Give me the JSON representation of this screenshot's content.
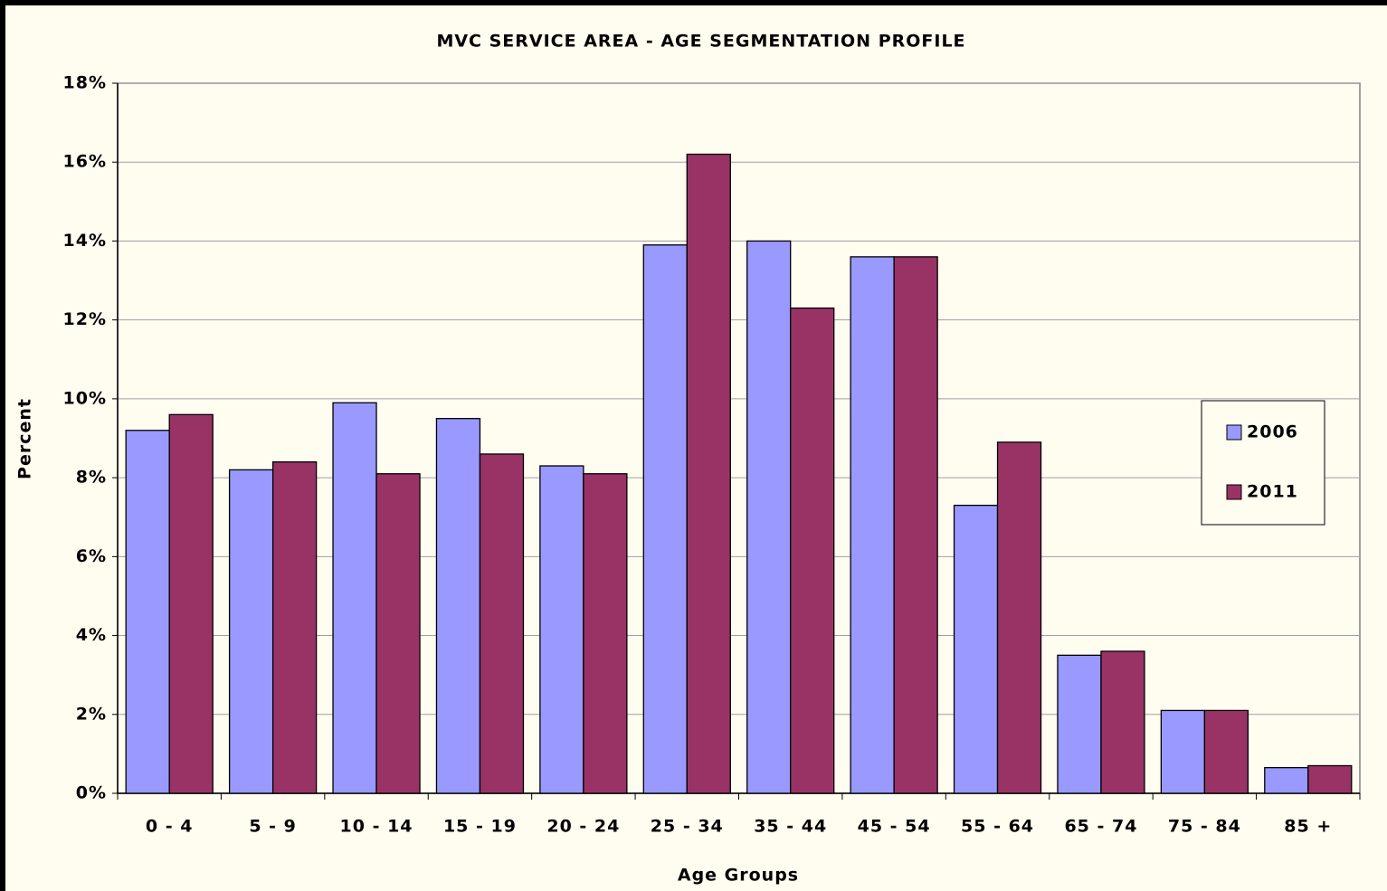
{
  "chart_data": {
    "type": "bar",
    "title": "MVC SERVICE AREA - AGE SEGMENTATION PROFILE",
    "x_label": "Age Groups",
    "y_label": "Percent",
    "categories": [
      "0 - 4",
      "5 - 9",
      "10 - 14",
      "15 - 19",
      "20 - 24",
      "25 - 34",
      "35 - 44",
      "45 - 54",
      "55 - 64",
      "65 - 74",
      "75 - 84",
      "85 +"
    ],
    "series": [
      {
        "name": "2006",
        "color": "#9999ff",
        "values": [
          9.2,
          8.2,
          9.9,
          9.5,
          8.3,
          13.9,
          14.0,
          13.6,
          7.3,
          3.5,
          2.1,
          0.65
        ]
      },
      {
        "name": "2011",
        "color": "#993366",
        "values": [
          9.6,
          8.4,
          8.1,
          8.6,
          8.1,
          16.2,
          12.3,
          13.6,
          8.9,
          3.6,
          2.1,
          0.7
        ]
      }
    ],
    "ylim": [
      0,
      18
    ],
    "yticks": [
      {
        "value": 0,
        "label": "0%"
      },
      {
        "value": 2,
        "label": "2%"
      },
      {
        "value": 4,
        "label": "4%"
      },
      {
        "value": 6,
        "label": "6%"
      },
      {
        "value": 8,
        "label": "8%"
      },
      {
        "value": 10,
        "label": "10%"
      },
      {
        "value": 12,
        "label": "12%"
      },
      {
        "value": 14,
        "label": "14%"
      },
      {
        "value": 16,
        "label": "16%"
      },
      {
        "value": 18,
        "label": "18%"
      }
    ],
    "grid": true,
    "legend": "right"
  }
}
